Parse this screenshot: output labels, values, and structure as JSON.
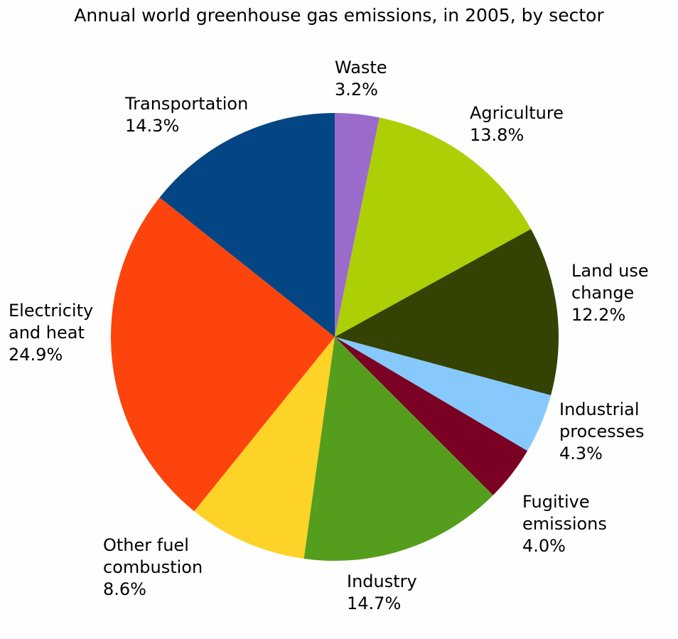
{
  "chart_data": {
    "type": "pie",
    "title": "Annual world greenhouse gas emissions, in 2005, by sector",
    "start_angle": "12 o'clock",
    "direction": "clockwise",
    "unit": "%",
    "slices": [
      {
        "label": "Waste",
        "lines": [
          "Waste"
        ],
        "value": 3.2,
        "value_text": "3.2%",
        "color": "#9b6bcb"
      },
      {
        "label": "Agriculture",
        "lines": [
          "Agriculture"
        ],
        "value": 13.8,
        "value_text": "13.8%",
        "color": "#adcf06"
      },
      {
        "label": "Land use change",
        "lines": [
          "Land use",
          "change"
        ],
        "value": 12.2,
        "value_text": "12.2%",
        "color": "#344304"
      },
      {
        "label": "Industrial processes",
        "lines": [
          "Industrial",
          "processes"
        ],
        "value": 4.3,
        "value_text": "4.3%",
        "color": "#87c9fd"
      },
      {
        "label": "Fugitive emissions",
        "lines": [
          "Fugitive",
          "emissions"
        ],
        "value": 4.0,
        "value_text": "4.0%",
        "color": "#7a0024"
      },
      {
        "label": "Industry",
        "lines": [
          "Industry"
        ],
        "value": 14.7,
        "value_text": "14.7%",
        "color": "#559d1d"
      },
      {
        "label": "Other fuel combustion",
        "lines": [
          "Other fuel",
          "combustion"
        ],
        "value": 8.6,
        "value_text": "8.6%",
        "color": "#fdd327"
      },
      {
        "label": "Electricity and heat",
        "lines": [
          "Electricity",
          "and heat"
        ],
        "value": 24.9,
        "value_text": "24.9%",
        "color": "#fd440d"
      },
      {
        "label": "Transportation",
        "lines": [
          "Transportation"
        ],
        "value": 14.3,
        "value_text": "14.3%",
        "color": "#044683"
      }
    ],
    "legend": "none (direct labels)"
  },
  "header": {
    "title": "Annual world greenhouse gas emissions, in 2005, by sector"
  },
  "labels": {
    "waste": {
      "line1": "Waste",
      "pct": "3.2%"
    },
    "agriculture": {
      "line1": "Agriculture",
      "pct": "13.8%"
    },
    "land_use": {
      "line1": "Land use",
      "line2": "change",
      "pct": "12.2%"
    },
    "industrial_processes": {
      "line1": "Industrial",
      "line2": "processes",
      "pct": "4.3%"
    },
    "fugitive": {
      "line1": "Fugitive",
      "line2": "emissions",
      "pct": "4.0%"
    },
    "industry": {
      "line1": "Industry",
      "pct": "14.7%"
    },
    "other_fuel": {
      "line1": "Other fuel",
      "line2": "combustion",
      "pct": "8.6%"
    },
    "electricity": {
      "line1": "Electricity",
      "line2": "and heat",
      "pct": "24.9%"
    },
    "transportation": {
      "line1": "Transportation",
      "pct": "14.3%"
    }
  }
}
